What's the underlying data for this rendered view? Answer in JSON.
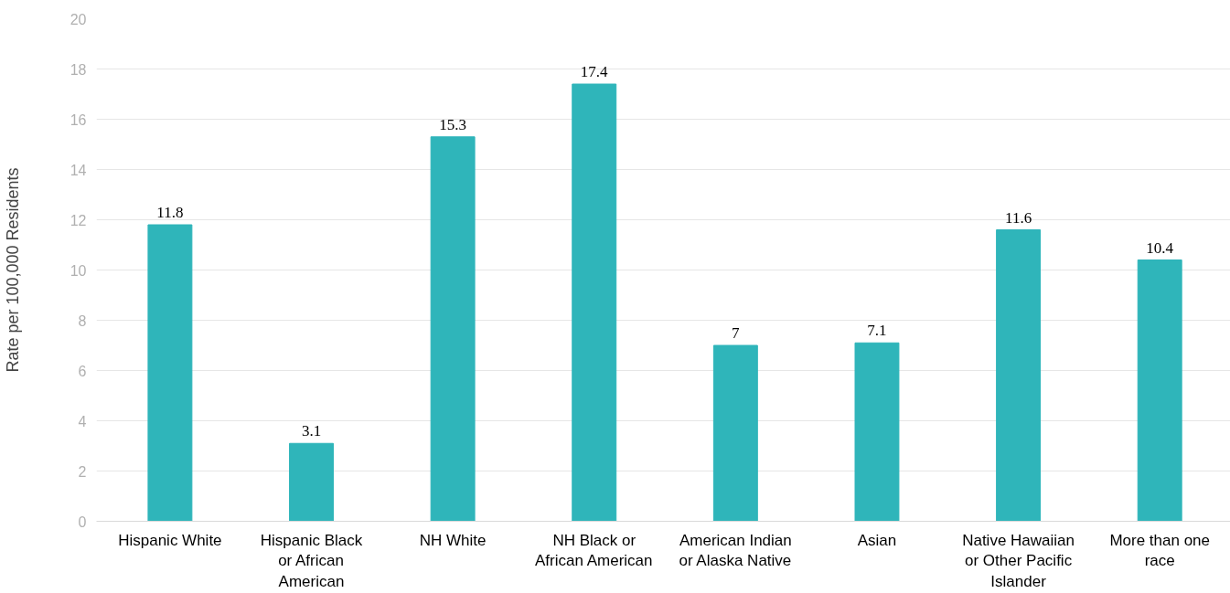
{
  "chart_data": {
    "type": "bar",
    "ylabel": "Rate per 100,000 Residents",
    "categories": [
      "Hispanic White",
      "Hispanic Black\nor African\nAmerican",
      "NH White",
      "NH Black or\nAfrican American",
      "American Indian\nor Alaska Native",
      "Asian",
      "Native Hawaiian\nor Other Pacific\nIslander",
      "More than one\nrace"
    ],
    "values": [
      11.8,
      3.1,
      15.3,
      17.4,
      7,
      7.1,
      11.6,
      10.4
    ],
    "color": "#2fb5ba",
    "ylim": [
      0,
      20
    ],
    "yticks": [
      0,
      2,
      4,
      6,
      8,
      10,
      12,
      14,
      16,
      18,
      20
    ],
    "grid": "y",
    "data_labels": true
  }
}
